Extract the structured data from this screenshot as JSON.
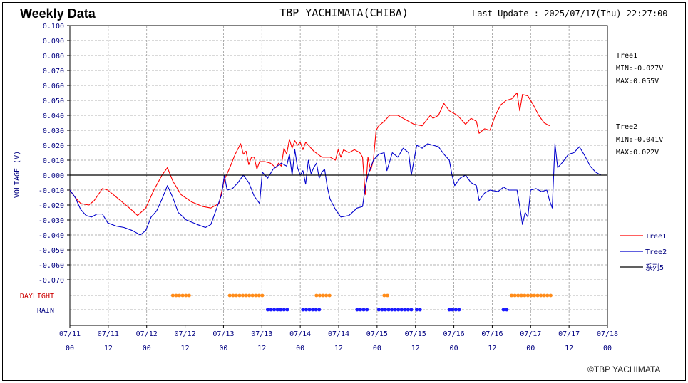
{
  "header": {
    "title": "Weekly Data",
    "station": "TBP YACHIMATA(CHIBA)",
    "last_update": "Last Update : 2025/07/17(Thu) 22:27:00"
  },
  "footer": {
    "copyright": "©TBP YACHIMATA"
  },
  "stats": {
    "tree1": {
      "name": "Tree1",
      "min": "MIN:-0.027V",
      "max": "MAX:0.055V"
    },
    "tree2": {
      "name": "Tree2",
      "min": "MIN:-0.041V",
      "max": "MAX:0.022V"
    }
  },
  "colors": {
    "tree1": "#ff0000",
    "tree2": "#0000cc",
    "zero": "#000000",
    "daylight": "#ff8c1a",
    "rain": "#1a1aff",
    "axis_text": "#000080",
    "row_daylight": "#cc0000"
  },
  "chart_data": {
    "type": "line",
    "ylabel": "VOLTAGE (V)",
    "ylim": [
      -0.07,
      0.1
    ],
    "y_ticks": [
      "0.100",
      "0.090",
      "0.080",
      "0.070",
      "0.060",
      "0.050",
      "0.040",
      "0.030",
      "0.020",
      "0.010",
      "0.000",
      "-0.010",
      "-0.020",
      "-0.030",
      "-0.040",
      "-0.050",
      "-0.060",
      "-0.070"
    ],
    "x_ticks": [
      {
        "date": "07/11",
        "hour": "00"
      },
      {
        "date": "07/11",
        "hour": "12"
      },
      {
        "date": "07/12",
        "hour": "00"
      },
      {
        "date": "07/12",
        "hour": "12"
      },
      {
        "date": "07/13",
        "hour": "00"
      },
      {
        "date": "07/13",
        "hour": "12"
      },
      {
        "date": "07/14",
        "hour": "00"
      },
      {
        "date": "07/14",
        "hour": "12"
      },
      {
        "date": "07/15",
        "hour": "00"
      },
      {
        "date": "07/15",
        "hour": "12"
      },
      {
        "date": "07/16",
        "hour": "00"
      },
      {
        "date": "07/16",
        "hour": "12"
      },
      {
        "date": "07/17",
        "hour": "00"
      },
      {
        "date": "07/17",
        "hour": "12"
      },
      {
        "date": "07/18",
        "hour": "00"
      }
    ],
    "grid": true,
    "legend": "right",
    "series": [
      {
        "name": "Tree1",
        "color": "#ff0000",
        "points": [
          [
            0,
            -0.01
          ],
          [
            2,
            -0.015
          ],
          [
            4,
            -0.019
          ],
          [
            7,
            -0.02
          ],
          [
            9,
            -0.017
          ],
          [
            12,
            -0.009
          ],
          [
            14,
            -0.01
          ],
          [
            18,
            -0.016
          ],
          [
            22,
            -0.022
          ],
          [
            25,
            -0.027
          ],
          [
            28,
            -0.022
          ],
          [
            31,
            -0.01
          ],
          [
            34,
            0.0
          ],
          [
            36,
            0.005
          ],
          [
            38,
            -0.004
          ],
          [
            41,
            -0.013
          ],
          [
            45,
            -0.018
          ],
          [
            49,
            -0.021
          ],
          [
            52,
            -0.022
          ],
          [
            55,
            -0.019
          ],
          [
            57,
            -0.003
          ],
          [
            59,
            0.005
          ],
          [
            61,
            0.014
          ],
          [
            63,
            0.021
          ],
          [
            64,
            0.014
          ],
          [
            65,
            0.016
          ],
          [
            66,
            0.007
          ],
          [
            67,
            0.012
          ],
          [
            68,
            0.012
          ],
          [
            69,
            0.004
          ],
          [
            70,
            0.009
          ],
          [
            72,
            0.009
          ],
          [
            74,
            0.008
          ],
          [
            76,
            0.005
          ],
          [
            77,
            0.008
          ],
          [
            78,
            0.006
          ],
          [
            79,
            0.018
          ],
          [
            80,
            0.014
          ],
          [
            81,
            0.024
          ],
          [
            82,
            0.018
          ],
          [
            83,
            0.023
          ],
          [
            84,
            0.02
          ],
          [
            85,
            0.022
          ],
          [
            86,
            0.017
          ],
          [
            87,
            0.022
          ],
          [
            88,
            0.02
          ],
          [
            90,
            0.016
          ],
          [
            93,
            0.012
          ],
          [
            96,
            0.012
          ],
          [
            98,
            0.01
          ],
          [
            99,
            0.017
          ],
          [
            100,
            0.012
          ],
          [
            101,
            0.017
          ],
          [
            103,
            0.015
          ],
          [
            105,
            0.017
          ],
          [
            107,
            0.015
          ],
          [
            108,
            0.012
          ],
          [
            109,
            -0.013
          ],
          [
            110,
            0.012
          ],
          [
            111,
            0.003
          ],
          [
            112,
            0.01
          ],
          [
            113,
            0.03
          ],
          [
            114,
            0.033
          ],
          [
            116,
            0.036
          ],
          [
            118,
            0.04
          ],
          [
            121,
            0.04
          ],
          [
            124,
            0.037
          ],
          [
            127,
            0.034
          ],
          [
            130,
            0.033
          ],
          [
            133,
            0.04
          ],
          [
            134,
            0.038
          ],
          [
            136,
            0.04
          ],
          [
            138,
            0.048
          ],
          [
            140,
            0.043
          ],
          [
            143,
            0.04
          ],
          [
            146,
            0.034
          ],
          [
            148,
            0.038
          ],
          [
            150,
            0.036
          ],
          [
            151,
            0.028
          ],
          [
            153,
            0.031
          ],
          [
            155,
            0.03
          ],
          [
            157,
            0.04
          ],
          [
            159,
            0.047
          ],
          [
            161,
            0.05
          ],
          [
            163,
            0.051
          ],
          [
            165,
            0.055
          ],
          [
            166,
            0.043
          ],
          [
            167,
            0.054
          ],
          [
            169,
            0.053
          ],
          [
            171,
            0.047
          ],
          [
            173,
            0.04
          ],
          [
            175,
            0.035
          ],
          [
            177,
            0.033
          ]
        ]
      },
      {
        "name": "Tree2",
        "color": "#0000cc",
        "points": [
          [
            0,
            -0.01
          ],
          [
            2,
            -0.015
          ],
          [
            4,
            -0.023
          ],
          [
            6,
            -0.027
          ],
          [
            8,
            -0.028
          ],
          [
            10,
            -0.026
          ],
          [
            12,
            -0.026
          ],
          [
            14,
            -0.032
          ],
          [
            17,
            -0.034
          ],
          [
            20,
            -0.035
          ],
          [
            23,
            -0.037
          ],
          [
            26,
            -0.04
          ],
          [
            28,
            -0.037
          ],
          [
            30,
            -0.028
          ],
          [
            32,
            -0.024
          ],
          [
            34,
            -0.016
          ],
          [
            36,
            -0.007
          ],
          [
            38,
            -0.015
          ],
          [
            40,
            -0.025
          ],
          [
            43,
            -0.03
          ],
          [
            47,
            -0.033
          ],
          [
            50,
            -0.035
          ],
          [
            52,
            -0.033
          ],
          [
            54,
            -0.023
          ],
          [
            56,
            -0.013
          ],
          [
            57,
            0.0
          ],
          [
            58,
            -0.01
          ],
          [
            60,
            -0.009
          ],
          [
            62,
            -0.005
          ],
          [
            64,
            0.0
          ],
          [
            66,
            -0.005
          ],
          [
            68,
            -0.014
          ],
          [
            70,
            -0.019
          ],
          [
            71,
            0.002
          ],
          [
            73,
            -0.002
          ],
          [
            75,
            0.004
          ],
          [
            78,
            0.008
          ],
          [
            80,
            0.006
          ],
          [
            81,
            0.014
          ],
          [
            82,
            0.0
          ],
          [
            83,
            0.017
          ],
          [
            84,
            0.005
          ],
          [
            85,
            0.0
          ],
          [
            86,
            0.003
          ],
          [
            87,
            -0.006
          ],
          [
            88,
            0.01
          ],
          [
            89,
            0.001
          ],
          [
            90,
            0.005
          ],
          [
            91,
            0.008
          ],
          [
            92,
            -0.002
          ],
          [
            93,
            0.002
          ],
          [
            94,
            0.004
          ],
          [
            95,
            -0.008
          ],
          [
            96,
            -0.016
          ],
          [
            98,
            -0.023
          ],
          [
            100,
            -0.028
          ],
          [
            103,
            -0.027
          ],
          [
            106,
            -0.022
          ],
          [
            108,
            -0.021
          ],
          [
            109,
            -0.008
          ],
          [
            110,
            0.0
          ],
          [
            112,
            0.01
          ],
          [
            114,
            0.014
          ],
          [
            116,
            0.015
          ],
          [
            117,
            0.003
          ],
          [
            119,
            0.015
          ],
          [
            121,
            0.012
          ],
          [
            123,
            0.018
          ],
          [
            125,
            0.015
          ],
          [
            126,
            0.0
          ],
          [
            128,
            0.02
          ],
          [
            130,
            0.018
          ],
          [
            132,
            0.021
          ],
          [
            134,
            0.02
          ],
          [
            136,
            0.019
          ],
          [
            138,
            0.014
          ],
          [
            140,
            0.01
          ],
          [
            141,
            0.0
          ],
          [
            142,
            -0.007
          ],
          [
            144,
            -0.002
          ],
          [
            146,
            0.0
          ],
          [
            148,
            -0.005
          ],
          [
            150,
            -0.007
          ],
          [
            151,
            -0.017
          ],
          [
            153,
            -0.012
          ],
          [
            155,
            -0.01
          ],
          [
            158,
            -0.011
          ],
          [
            160,
            -0.008
          ],
          [
            162,
            -0.01
          ],
          [
            165,
            -0.01
          ],
          [
            166,
            -0.021
          ],
          [
            167,
            -0.033
          ],
          [
            168,
            -0.025
          ],
          [
            169,
            -0.028
          ],
          [
            170,
            -0.01
          ],
          [
            172,
            -0.009
          ],
          [
            174,
            -0.011
          ],
          [
            176,
            -0.01
          ],
          [
            177,
            -0.017
          ],
          [
            178,
            -0.022
          ],
          [
            179,
            0.021
          ],
          [
            180,
            0.005
          ],
          [
            182,
            0.009
          ],
          [
            184,
            0.014
          ],
          [
            186,
            0.015
          ],
          [
            188,
            0.019
          ],
          [
            190,
            0.013
          ],
          [
            192,
            0.006
          ],
          [
            194,
            0.002
          ],
          [
            196,
            0.0
          ]
        ]
      },
      {
        "name": "系列5",
        "color": "#000000",
        "points": [
          [
            0,
            0.0
          ],
          [
            196,
            0.0
          ]
        ]
      }
    ],
    "event_rows": [
      {
        "name": "DAYLIGHT",
        "color": "#ff8c1a",
        "intervals": [
          [
            38,
            45
          ],
          [
            59,
            72
          ],
          [
            91,
            96
          ],
          [
            116,
            118
          ],
          [
            163,
            178
          ]
        ]
      },
      {
        "name": "RAIN",
        "color": "#1a1aff",
        "intervals": [
          [
            73,
            81
          ],
          [
            86,
            93
          ],
          [
            106,
            110
          ],
          [
            114,
            127
          ],
          [
            128,
            130
          ],
          [
            140,
            144
          ],
          [
            160,
            162
          ]
        ]
      }
    ]
  }
}
